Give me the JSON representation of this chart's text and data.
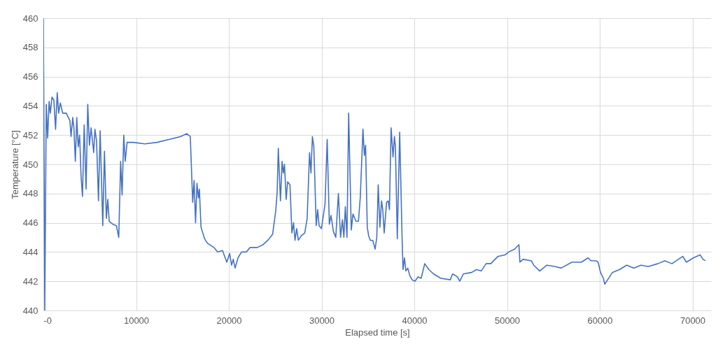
{
  "chart_data": {
    "type": "line",
    "xlabel": "Elapsed time [s]",
    "ylabel": "Temperature [°C]",
    "xlim": [
      0,
      72000
    ],
    "xticks": [
      {
        "value": 0,
        "label": "-0"
      },
      10000,
      20000,
      30000,
      40000,
      50000,
      60000,
      70000
    ],
    "ylim": [
      440,
      460
    ],
    "yticks": [
      440,
      442,
      444,
      446,
      448,
      450,
      452,
      454,
      456,
      458,
      460
    ],
    "grid": true,
    "marker": "none",
    "line_style": "solid",
    "series": [
      {
        "color": "#4472c4",
        "x": [
          0,
          150,
          310,
          463,
          617,
          745,
          926,
          1131,
          1312,
          1492,
          1646,
          1826,
          2083,
          2469,
          2855,
          2984,
          3164,
          3292,
          3446,
          3600,
          3755,
          3909,
          4063,
          4218,
          4398,
          4604,
          4784,
          4964,
          5144,
          5427,
          5556,
          5736,
          5941,
          6121,
          6404,
          6585,
          6790,
          6944,
          7099,
          7485,
          7870,
          8128,
          8333,
          8488,
          8668,
          8822,
          9028,
          9671,
          10957,
          12243,
          13529,
          14815,
          15458,
          15844,
          16101,
          16255,
          16410,
          16564,
          16718,
          16821,
          17001,
          17387,
          17695,
          18416,
          18801,
          19316,
          19779,
          20088,
          20293,
          20473,
          20679,
          20988,
          21373,
          21888,
          22274,
          23045,
          23688,
          24203,
          24717,
          25057,
          25211,
          25334,
          25566,
          25746,
          25875,
          26003,
          26183,
          26338,
          26595,
          26800,
          26980,
          27134,
          27315,
          27495,
          27803,
          28189,
          28446,
          28704,
          28858,
          29012,
          29167,
          29424,
          29578,
          29733,
          29990,
          30376,
          30607,
          30839,
          31019,
          31276,
          31533,
          31815,
          32048,
          32253,
          32407,
          32562,
          32742,
          32922,
          33205,
          33385,
          33719,
          33976,
          34182,
          34465,
          34619,
          34748,
          34928,
          35082,
          35262,
          35520,
          35777,
          35957,
          36111,
          36291,
          36471,
          36600,
          36754,
          37011,
          37191,
          37320,
          37500,
          37706,
          37860,
          37963,
          38169,
          38426,
          38683,
          38786,
          38941,
          39095,
          39301,
          39506,
          39763,
          40072,
          40409,
          40741,
          41127,
          41566,
          42078,
          42850,
          43879,
          44136,
          44650,
          44907,
          45293,
          46193,
          46708,
          47222,
          47737,
          48251,
          49023,
          49794,
          50180,
          50823,
          51286,
          51389,
          51723,
          52623,
          52881,
          53524,
          54295,
          55195,
          55838,
          56996,
          58025,
          58745,
          59053,
          59568,
          59825,
          60082,
          60391,
          60545,
          60854,
          61368,
          62140,
          62912,
          63683,
          64455,
          65226,
          66255,
          67027,
          67798,
          68955,
          69341,
          70113,
          70830,
          71138,
          71395
        ],
        "values": [
          460,
          440,
          454.1,
          451.8,
          454.3,
          453.5,
          454.6,
          454.4,
          452.4,
          454.9,
          453.5,
          454.2,
          453.5,
          453.5,
          453.0,
          451.9,
          453.2,
          452.5,
          450.2,
          453.2,
          451.2,
          452.0,
          449.2,
          447.8,
          452.7,
          448.3,
          454.1,
          451.3,
          452.5,
          450.8,
          452.4,
          451.6,
          447.5,
          452.3,
          445.8,
          450.9,
          446.3,
          447.6,
          446.1,
          445.9,
          445.8,
          445.0,
          450.2,
          447.9,
          452.0,
          450.2,
          451.5,
          451.5,
          451.4,
          451.5,
          451.7,
          451.9,
          452.1,
          451.9,
          447.4,
          448.9,
          446.0,
          448.7,
          447.7,
          448.3,
          445.7,
          444.9,
          444.6,
          444.3,
          444.0,
          444.1,
          443.3,
          443.9,
          443.1,
          443.5,
          442.9,
          443.6,
          444.0,
          444.0,
          444.3,
          444.3,
          444.5,
          444.8,
          445.2,
          446.8,
          448.1,
          451.1,
          447.5,
          450.2,
          449.4,
          450.0,
          447.6,
          448.8,
          448.6,
          445.3,
          446.0,
          444.8,
          445.6,
          444.8,
          445.1,
          445.3,
          446.3,
          450.8,
          449.4,
          451.9,
          451.2,
          445.8,
          446.9,
          445.8,
          445.6,
          447.3,
          451.7,
          445.9,
          446.5,
          445.4,
          445.0,
          448.0,
          445.0,
          446.2,
          445.0,
          447.1,
          445.0,
          453.5,
          445.5,
          446.6,
          446.1,
          446.1,
          447.8,
          452.4,
          450.6,
          451.3,
          445.7,
          445.1,
          444.8,
          444.8,
          444.2,
          445.0,
          448.6,
          445.7,
          447.5,
          446.9,
          445.3,
          447.4,
          447.5,
          446.9,
          452.5,
          450.5,
          451.9,
          451.2,
          444.9,
          452.2,
          445.0,
          442.8,
          443.6,
          442.7,
          442.9,
          442.4,
          442.1,
          442.0,
          442.3,
          442.2,
          443.2,
          442.8,
          442.5,
          442.2,
          442.1,
          442.5,
          442.3,
          442.0,
          442.5,
          442.6,
          442.8,
          442.7,
          443.2,
          443.2,
          443.7,
          443.8,
          444.0,
          444.2,
          444.5,
          443.3,
          443.5,
          443.4,
          443.1,
          442.7,
          443.1,
          443.0,
          442.9,
          443.3,
          443.3,
          443.6,
          443.4,
          443.4,
          443.3,
          442.6,
          442.2,
          441.8,
          442.1,
          442.6,
          442.8,
          443.1,
          442.9,
          443.1,
          443.0,
          443.2,
          443.4,
          443.2,
          443.7,
          443.3,
          443.6,
          443.8,
          443.5,
          443.4
        ]
      }
    ]
  }
}
